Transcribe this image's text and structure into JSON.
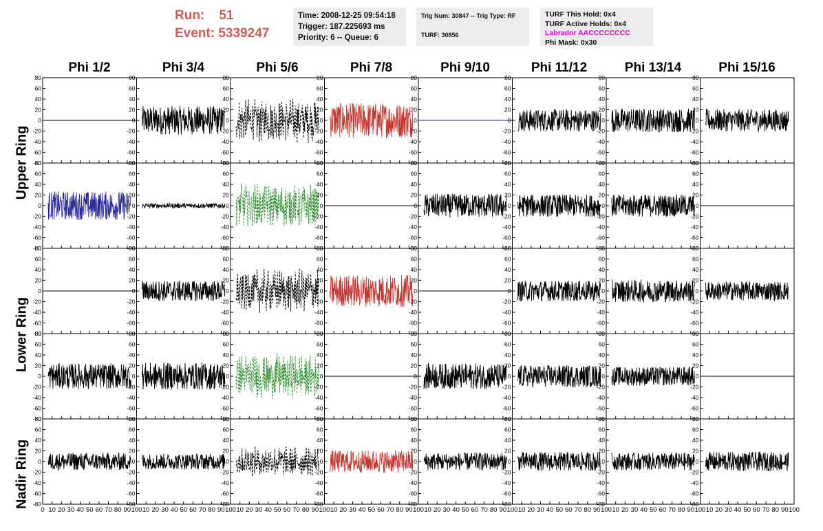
{
  "header": {
    "run_label": "Run:",
    "run_value": "51",
    "event_label": "Event:",
    "event_value": "5339247",
    "time_line": "Time: 2008-12-25 09:54:18",
    "trigger_line": "Trigger: 187.225693 ms",
    "priority_line": "Priority: 6 -- Queue: 6",
    "trig_line": "Trig Num: 30847 -- Trig Type: RF",
    "turf_line": "TURF: 30856",
    "turf_hold_line": "TURF This Hold: 0x4",
    "turf_active_line": "TURF Active Holds: 0x4",
    "labrador_line": "Labrador AACCCCCCCC",
    "phi_mask_line": "Phi Mask: 0x30",
    "labrador_color": "#e000e0"
  },
  "columns": [
    "Phi 1/2",
    "Phi 3/4",
    "Phi 5/6",
    "Phi 7/8",
    "Phi 9/10",
    "Phi 11/12",
    "Phi 13/14",
    "Phi 15/16"
  ],
  "row_labels": [
    "Upper Ring",
    "Lower Ring",
    "Nadir Ring"
  ],
  "chart_data": {
    "type": "line",
    "description_grid": "5 rows x 8 columns of waveform panels",
    "ylim": [
      -80,
      80
    ],
    "xlim": [
      0,
      100
    ],
    "y_ticks": [
      -80,
      -60,
      -40,
      -20,
      0,
      20,
      40,
      60,
      80
    ],
    "x_tick_labels": [
      "0",
      "10",
      "20",
      "30",
      "40",
      "50",
      "60",
      "70",
      "80",
      "90",
      "100"
    ],
    "panels": [
      [
        {
          "style": "flat",
          "color": "#000000",
          "amp": 0
        },
        {
          "style": "noise",
          "color": "#000000",
          "amp": 18
        },
        {
          "style": "dashed",
          "color": "#000000",
          "amp": 22
        },
        {
          "style": "noise",
          "color": "#c43a32",
          "amp": 22
        },
        {
          "style": "flat",
          "color": "#1a1aa0",
          "amp": 0
        },
        {
          "style": "noise",
          "color": "#000000",
          "amp": 14
        },
        {
          "style": "noise",
          "color": "#000000",
          "amp": 15
        },
        {
          "style": "noise",
          "color": "#000000",
          "amp": 14
        }
      ],
      [
        {
          "style": "noise",
          "color": "#2a2a9a",
          "amp": 18
        },
        {
          "style": "noise",
          "color": "#000000",
          "amp": 3
        },
        {
          "style": "dashed",
          "color": "#2f8f2f",
          "amp": 22
        },
        {
          "style": "flat",
          "color": "#000000",
          "amp": 0
        },
        {
          "style": "noise",
          "color": "#000000",
          "amp": 15
        },
        {
          "style": "noise",
          "color": "#000000",
          "amp": 14
        },
        {
          "style": "noise",
          "color": "#000000",
          "amp": 14
        },
        {
          "style": "flat",
          "color": "#000000",
          "amp": 0
        }
      ],
      [
        {
          "style": "flat",
          "color": "#000000",
          "amp": 0
        },
        {
          "style": "noise",
          "color": "#000000",
          "amp": 13
        },
        {
          "style": "dashed",
          "color": "#000000",
          "amp": 22
        },
        {
          "style": "noise",
          "color": "#c43a32",
          "amp": 20
        },
        {
          "style": "flat",
          "color": "#000000",
          "amp": 0
        },
        {
          "style": "noise",
          "color": "#000000",
          "amp": 13
        },
        {
          "style": "noise",
          "color": "#000000",
          "amp": 14
        },
        {
          "style": "noise",
          "color": "#000000",
          "amp": 12
        }
      ],
      [
        {
          "style": "noise",
          "color": "#000000",
          "amp": 16
        },
        {
          "style": "noise",
          "color": "#000000",
          "amp": 17
        },
        {
          "style": "dashed",
          "color": "#2f8f2f",
          "amp": 22
        },
        {
          "style": "flat",
          "color": "#000000",
          "amp": 0
        },
        {
          "style": "noise",
          "color": "#000000",
          "amp": 16
        },
        {
          "style": "noise",
          "color": "#000000",
          "amp": 14
        },
        {
          "style": "noise",
          "color": "#000000",
          "amp": 12
        },
        {
          "style": "flat",
          "color": "#000000",
          "amp": 0
        }
      ],
      [
        {
          "style": "noise",
          "color": "#000000",
          "amp": 11
        },
        {
          "style": "noise",
          "color": "#000000",
          "amp": 10
        },
        {
          "style": "dashed",
          "color": "#000000",
          "amp": 15
        },
        {
          "style": "noise",
          "color": "#c43a32",
          "amp": 14
        },
        {
          "style": "noise",
          "color": "#000000",
          "amp": 11
        },
        {
          "style": "noise",
          "color": "#000000",
          "amp": 12
        },
        {
          "style": "noise",
          "color": "#000000",
          "amp": 11
        },
        {
          "style": "noise",
          "color": "#000000",
          "amp": 12
        }
      ]
    ]
  }
}
